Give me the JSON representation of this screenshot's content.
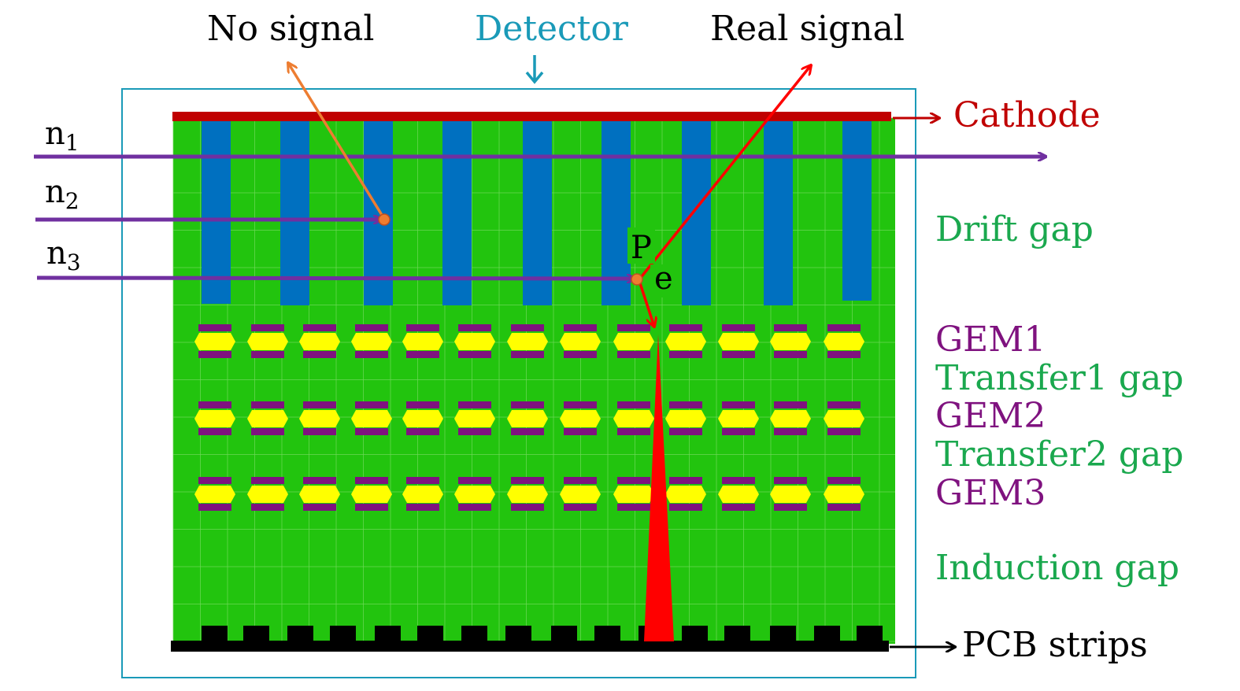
{
  "labels": {
    "no_signal": "No signal",
    "detector": "Detector",
    "real_signal": "Real signal",
    "cathode": "Cathode",
    "drift_gap": "Drift gap",
    "gem1": "GEM1",
    "transfer1_gap": "Transfer1 gap",
    "gem2": "GEM2",
    "transfer2_gap": "Transfer2 gap",
    "gem3": "GEM3",
    "induction_gap": "Induction gap",
    "pcb_strips": "PCB strips",
    "p": "P",
    "e": "e"
  },
  "neutrons": [
    {
      "base": "n",
      "sub": "1"
    },
    {
      "base": "n",
      "sub": "2"
    },
    {
      "base": "n",
      "sub": "3"
    }
  ],
  "colors": {
    "detector_frame": "#1a9ab8",
    "gas_green": "#22c40e",
    "grid_line": "#7ee06a",
    "converter_blue": "#0070c0",
    "cathode_red": "#c00000",
    "gem_purple": "#7f127f",
    "gem_yellow": "#ffff00",
    "pcb_black": "#000000",
    "neutron_purple": "#7030a0",
    "no_signal_orange": "#ed7d31",
    "real_signal_red": "#ff0000",
    "avalanche_red": "#ff0000",
    "drift_text_green": "#1aa84e",
    "gem_text_purple": "#7f127f",
    "cathode_text": "#c00000",
    "detector_text": "#1a9ab8"
  },
  "icons": {
    "detector_pointer": "arrow-down-icon",
    "cathode_pointer": "arrow-right-icon",
    "pcb_pointer": "arrow-right-icon",
    "interaction_point": "dot-icon"
  }
}
